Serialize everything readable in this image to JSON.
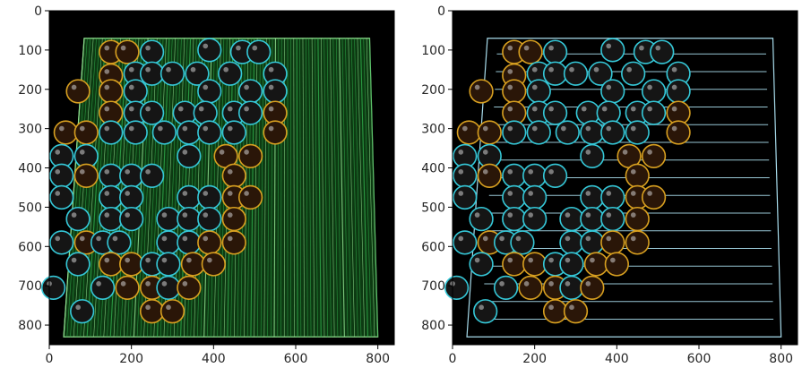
{
  "panels": [
    {
      "name": "vertical-edge-filter",
      "type": "image",
      "xlim": [
        0,
        840
      ],
      "ylim": [
        850,
        0
      ],
      "xticks": [
        "0",
        "200",
        "400",
        "600",
        "800"
      ],
      "yticks": [
        "0",
        "100",
        "200",
        "300",
        "400",
        "500",
        "600",
        "700",
        "800"
      ],
      "board_tint": "#2fa84a",
      "line_color": "#8fe08f",
      "stone_rim": "#35c8d8",
      "highlight_rim": "#d8a020"
    },
    {
      "name": "horizontal-edge-filter",
      "type": "image",
      "xlim": [
        0,
        840
      ],
      "ylim": [
        850,
        0
      ],
      "xticks": [
        "0",
        "200",
        "400",
        "600",
        "800"
      ],
      "yticks": [
        "0",
        "100",
        "200",
        "300",
        "400",
        "500",
        "600",
        "700",
        "800"
      ],
      "board_tint": "#000000",
      "line_color": "#a8dcec",
      "stone_rim": "#35c8d8",
      "highlight_rim": "#d8a020"
    }
  ]
}
